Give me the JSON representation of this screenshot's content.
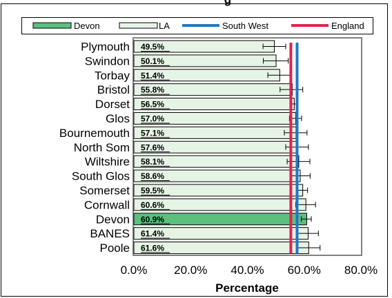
{
  "chart_data": {
    "type": "bar",
    "orientation": "horizontal",
    "title": "",
    "xlabel": "Percentage",
    "ylabel": "",
    "xlim": [
      0,
      80
    ],
    "x_ticks": [
      "0.0%",
      "20.0%",
      "40.0%",
      "60.0%",
      "80.0%"
    ],
    "categories": [
      "Plymouth",
      "Swindon",
      "Torbay",
      "Bristol",
      "Dorset",
      "Glos",
      "Bournemouth",
      "North Som",
      "Wiltshire",
      "South Glos",
      "Somerset",
      "Cornwall",
      "Devon",
      "BANES",
      "Poole"
    ],
    "values": [
      49.5,
      50.1,
      51.4,
      55.8,
      56.5,
      57.0,
      57.1,
      57.6,
      58.1,
      58.6,
      59.5,
      60.6,
      60.9,
      61.4,
      61.6
    ],
    "value_labels": [
      "49.5%",
      "50.1%",
      "51.4%",
      "55.8%",
      "56.5%",
      "57.0%",
      "57.1%",
      "57.6%",
      "58.1%",
      "58.6%",
      "59.5%",
      "60.6%",
      "60.9%",
      "61.4%",
      "61.6%"
    ],
    "error_low": [
      45.5,
      45.6,
      47.2,
      51.5,
      55.0,
      54.8,
      53.0,
      53.5,
      54.0,
      55.0,
      57.5,
      57.0,
      59.0,
      57.5,
      57.3
    ],
    "error_high": [
      53.5,
      54.4,
      55.4,
      59.5,
      57.8,
      59.1,
      61.0,
      61.5,
      62.0,
      62.1,
      61.2,
      64.0,
      62.5,
      65.0,
      65.6
    ],
    "highlight_category": "Devon",
    "reference_lines": [
      {
        "name": "South West",
        "value": 57.5,
        "color": "#1f77c8"
      },
      {
        "name": "England",
        "value": 55.3,
        "color": "#e8204f"
      }
    ],
    "legend": {
      "position": "top",
      "entries": [
        {
          "label": "Devon",
          "kind": "bar",
          "color": "#5cbf7f"
        },
        {
          "label": "LA",
          "kind": "bar",
          "color": "#e6f4e6"
        },
        {
          "label": "South West",
          "kind": "line",
          "color": "#1f77c8"
        },
        {
          "label": "England",
          "kind": "line",
          "color": "#e8204f"
        }
      ]
    },
    "colors": {
      "bar": "#e6f4e6",
      "highlight": "#5cbf7f",
      "plot_border": "#808080"
    },
    "grid": false,
    "partial_title_visible": "g"
  }
}
